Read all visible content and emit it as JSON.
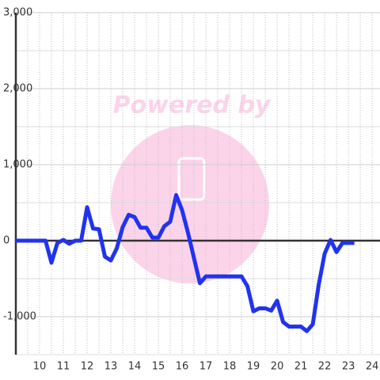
{
  "chart_data": {
    "type": "line",
    "watermark": "Powered by",
    "x": [
      9,
      10.25,
      10.5,
      10.75,
      11,
      11.25,
      11.5,
      11.75,
      12,
      12.25,
      12.5,
      12.75,
      13,
      13.25,
      13.5,
      13.75,
      14,
      14.25,
      14.5,
      14.75,
      15,
      15.25,
      15.5,
      15.75,
      16,
      16.25,
      16.5,
      16.75,
      17,
      17.25,
      17.5,
      17.75,
      18,
      18.25,
      18.5,
      18.75,
      19,
      19.25,
      19.5,
      19.75,
      20,
      20.25,
      20.5,
      20.75,
      21,
      21.25,
      21.5,
      21.75,
      22,
      22.25,
      22.5,
      22.75,
      23,
      23.25
    ],
    "series": [
      {
        "color": "#2233ee",
        "values": [
          0,
          0,
          -290,
          -30,
          10,
          -40,
          0,
          0,
          440,
          160,
          150,
          -210,
          -260,
          -100,
          180,
          340,
          310,
          170,
          170,
          40,
          40,
          190,
          250,
          600,
          400,
          100,
          -230,
          -560,
          -470,
          -470,
          -470,
          -470,
          -470,
          -470,
          -470,
          -600,
          -930,
          -890,
          -890,
          -920,
          -790,
          -1070,
          -1130,
          -1130,
          -1130,
          -1190,
          -1100,
          -580,
          -170,
          10,
          -150,
          -30,
          -30,
          -30
        ]
      }
    ],
    "xlim": [
      9,
      24.33
    ],
    "ylim": [
      -1500,
      3000
    ],
    "xticks": [
      10,
      11,
      12,
      13,
      14,
      15,
      16,
      17,
      18,
      19,
      20,
      21,
      22,
      23,
      24
    ],
    "yticks": [
      {
        "value": -1000,
        "label": "-1,000"
      },
      0,
      {
        "value": 1000,
        "label": "1,000"
      },
      {
        "value": 2000,
        "label": "2,000"
      },
      {
        "value": 3000,
        "label": "3,000"
      }
    ],
    "grid": true
  }
}
